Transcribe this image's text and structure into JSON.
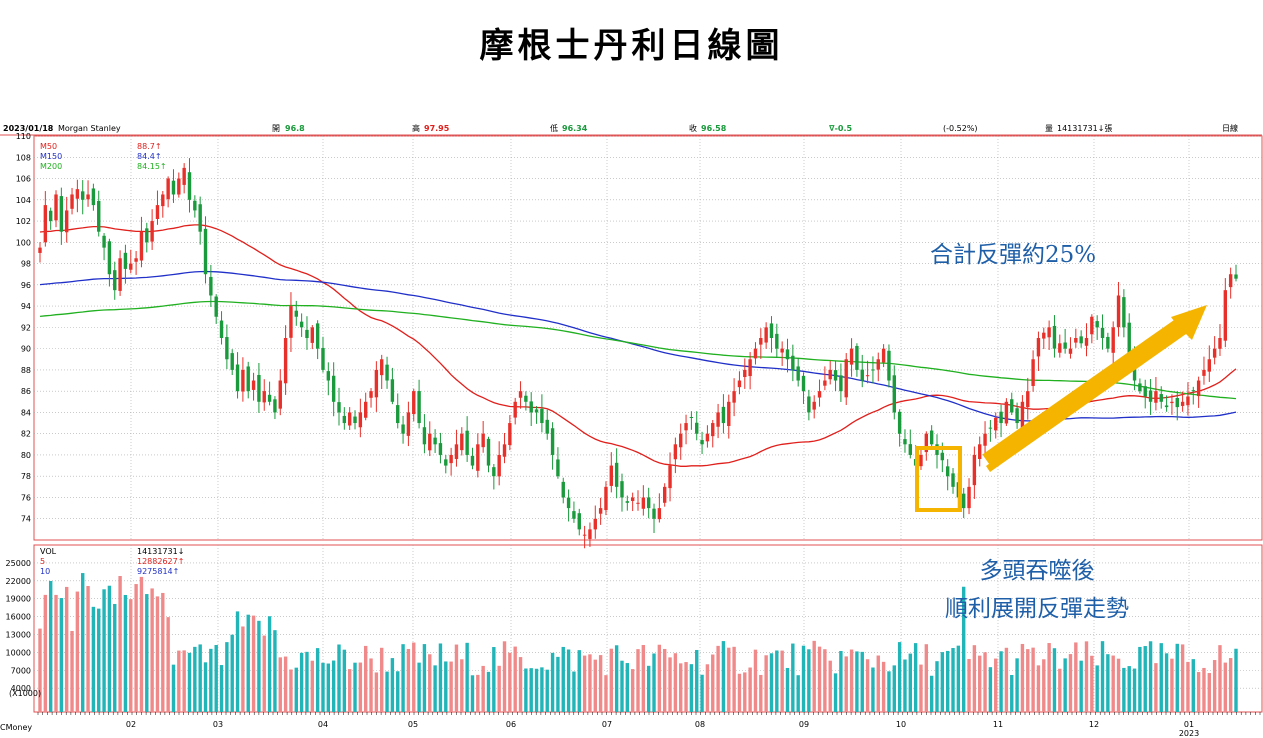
{
  "title": "摩根士丹利日線圖",
  "header": {
    "date": "2023/01/18",
    "name": "Morgan Stanley",
    "open_label": "開",
    "open": "96.8",
    "high_label": "高",
    "high": "97.95",
    "low_label": "低",
    "low": "96.34",
    "close_label": "收",
    "close": "96.58",
    "change": "∇-0.5",
    "change_pct": "(-0.52%)",
    "vol_label": "量",
    "vol": "14131731↓張",
    "period": "日線"
  },
  "watermark": "CMoney",
  "annotations": {
    "rebound": "合計反彈約25%",
    "engulf_line1": "多頭吞噬後",
    "engulf_line2": "順利展開反彈走勢"
  },
  "colors": {
    "up": "#e8302a",
    "down": "#1a9a3c",
    "ma50": "#e0201c",
    "ma150": "#2030c8",
    "ma200": "#20b020",
    "vol_up": "#f08a8a",
    "vol_down": "#22b5b8",
    "arrow": "#f5b400",
    "box": "#f5b400"
  },
  "chart_data": [
    {
      "type": "candlestick",
      "ylim": [
        72,
        110
      ],
      "y_ticks": [
        74,
        76,
        78,
        80,
        82,
        84,
        86,
        88,
        90,
        92,
        94,
        96,
        98,
        100,
        102,
        104,
        106,
        108,
        110
      ],
      "x_tick_labels": [
        "02",
        "03",
        "04",
        "05",
        "06",
        "07",
        "08",
        "09",
        "10",
        "11",
        "12",
        "01"
      ],
      "x_tick_sublabel": "2023",
      "legend": [
        {
          "name": "M50",
          "value": "88.7↑"
        },
        {
          "name": "M150",
          "value": "84.4↑"
        },
        {
          "name": "M200",
          "value": "84.15↑"
        }
      ],
      "closes": [
        99.5,
        103.5,
        102,
        104.5,
        101,
        103,
        104.5,
        105,
        104,
        104.5,
        103.5,
        101,
        99.5,
        97,
        95.5,
        98.5,
        97.5,
        98,
        98.5,
        101,
        100,
        102,
        103.5,
        104.5,
        106,
        104.5,
        106,
        107,
        104,
        103,
        101,
        97,
        95,
        93,
        91,
        89,
        88,
        86,
        88,
        86,
        87,
        85,
        86,
        85,
        84,
        87,
        91,
        94,
        93,
        92,
        91,
        92,
        90,
        88,
        87,
        85,
        84,
        83,
        84,
        83,
        84,
        85,
        86,
        88,
        89,
        87,
        85,
        83,
        82,
        84,
        86,
        83,
        81,
        82,
        81,
        80,
        79,
        80,
        81,
        82,
        80,
        79,
        81,
        82,
        79,
        78,
        80,
        81,
        83,
        85,
        86,
        85,
        84,
        84,
        83,
        82,
        80,
        78,
        76,
        75,
        74,
        73,
        72.5,
        73,
        74,
        75,
        77,
        79,
        77,
        76,
        75.5,
        76,
        75.5,
        76,
        75,
        74,
        75,
        77,
        79,
        81,
        82,
        83,
        83.5,
        82,
        81,
        82,
        83,
        84,
        83,
        85,
        86,
        87,
        88,
        89,
        90,
        91,
        92,
        91,
        90,
        90,
        89,
        88,
        87,
        86,
        84,
        85,
        86,
        87,
        88,
        87,
        86,
        89,
        90,
        88,
        87,
        87.5,
        88,
        89,
        90,
        87,
        84,
        82,
        81,
        80,
        79,
        80,
        82,
        81,
        80,
        79.5,
        78,
        77,
        76,
        75,
        77,
        80,
        81,
        82,
        82.5,
        83.5,
        83,
        85,
        84,
        83,
        85,
        86,
        89,
        91,
        91.5,
        92,
        90,
        90.5,
        90,
        90,
        91,
        90.5,
        91,
        93,
        92,
        91,
        90,
        92,
        95,
        92,
        89,
        87,
        86,
        85.5,
        85,
        86,
        85,
        84.5,
        85,
        84.5,
        85,
        85.5,
        86,
        87,
        88,
        89,
        90,
        91,
        95.5,
        97,
        96.58
      ],
      "vol_ylim": [
        0,
        28000
      ],
      "vol_ticks": [
        4000,
        7000,
        10000,
        13000,
        16000,
        19000,
        22000,
        25000
      ],
      "vol_legend": [
        {
          "name": "VOL",
          "value": "14131731↓"
        },
        {
          "name": "5",
          "value": "12882627↑"
        },
        {
          "name": "10",
          "value": "9275814↑"
        }
      ],
      "vol_axis_unit": "(X1000)"
    }
  ]
}
